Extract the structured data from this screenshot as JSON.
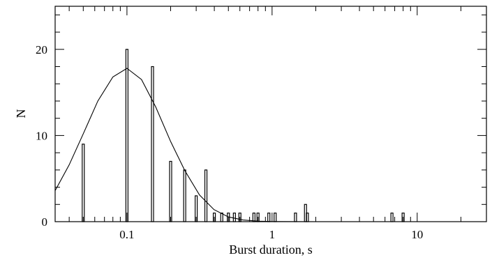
{
  "chart_data": {
    "type": "bar",
    "xlabel": "Burst duration, s",
    "ylabel": "N",
    "xscale": "log",
    "xlim": [
      0.032,
      30
    ],
    "ylim": [
      0,
      25
    ],
    "grid": false,
    "x_tick_labels": [
      {
        "value": 0.1,
        "label": "0.1"
      },
      {
        "value": 1,
        "label": "1"
      },
      {
        "value": 10,
        "label": "10"
      }
    ],
    "y_tick_labels": [
      {
        "value": 0,
        "label": "0"
      },
      {
        "value": 10,
        "label": "10"
      },
      {
        "value": 20,
        "label": "20"
      }
    ],
    "series": [
      {
        "type": "bar",
        "x": [
          0.05,
          0.1,
          0.15,
          0.2,
          0.25,
          0.3,
          0.35,
          0.4,
          0.45,
          0.5,
          0.55,
          0.6,
          0.75,
          0.8,
          0.95,
          1.05,
          1.45,
          1.7,
          1.75,
          6.7,
          8.0
        ],
        "values": [
          9,
          20,
          18,
          7,
          6,
          3,
          6,
          1,
          1,
          1,
          1,
          1,
          1,
          1,
          1,
          1,
          1,
          2,
          1,
          1,
          1
        ]
      },
      {
        "type": "line",
        "x": [
          0.032,
          0.04,
          0.05,
          0.063,
          0.08,
          0.1,
          0.126,
          0.158,
          0.2,
          0.251,
          0.316,
          0.398,
          0.5,
          0.63,
          0.8,
          1.0,
          2.0,
          5.0,
          10.0,
          20.0,
          30.0
        ],
        "values": [
          3.6,
          6.6,
          10.2,
          14.0,
          16.8,
          17.8,
          16.5,
          13.3,
          9.3,
          5.9,
          3.1,
          1.4,
          0.55,
          0.2,
          0.06,
          0.02,
          0.0,
          0.0,
          0.0,
          0.0,
          0.0
        ]
      }
    ]
  }
}
